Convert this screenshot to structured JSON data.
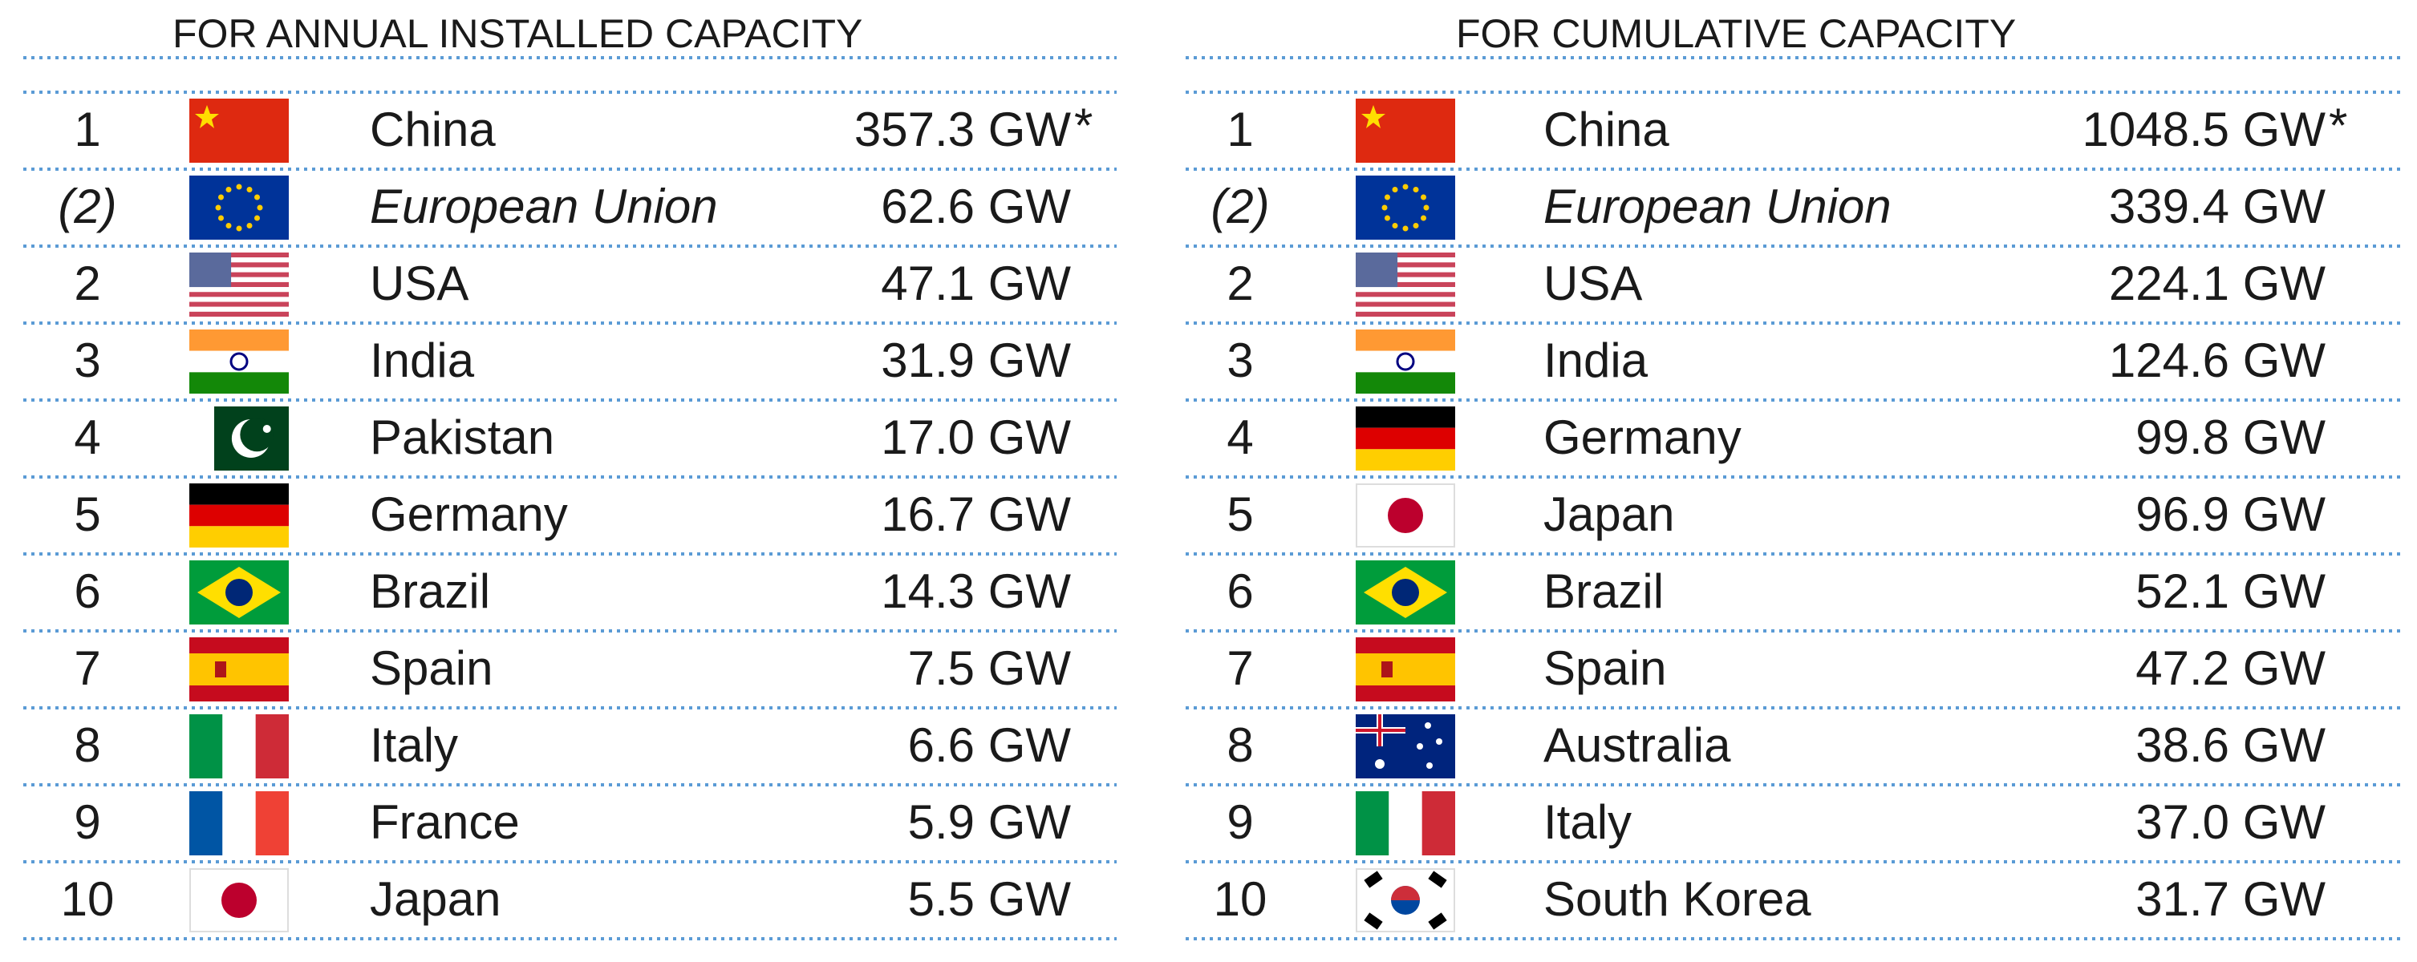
{
  "tables": [
    {
      "title": "FOR ANNUAL INSTALLED CAPACITY",
      "rows": [
        {
          "rank": "1",
          "country": "China",
          "capacity": "357.3 GW",
          "note": "*"
        },
        {
          "rank": "(2)",
          "country": "European Union",
          "capacity": "62.6 GW",
          "italic": true
        },
        {
          "rank": "2",
          "country": "USA",
          "capacity": "47.1 GW"
        },
        {
          "rank": "3",
          "country": "India",
          "capacity": "31.9 GW"
        },
        {
          "rank": "4",
          "country": "Pakistan",
          "capacity": "17.0 GW"
        },
        {
          "rank": "5",
          "country": "Germany",
          "capacity": "16.7 GW"
        },
        {
          "rank": "6",
          "country": "Brazil",
          "capacity": "14.3 GW"
        },
        {
          "rank": "7",
          "country": "Spain",
          "capacity": "7.5 GW"
        },
        {
          "rank": "8",
          "country": "Italy",
          "capacity": "6.6 GW"
        },
        {
          "rank": "9",
          "country": "France",
          "capacity": "5.9 GW"
        },
        {
          "rank": "10",
          "country": "Japan",
          "capacity": "5.5 GW"
        }
      ]
    },
    {
      "title": "FOR CUMULATIVE CAPACITY",
      "rows": [
        {
          "rank": "1",
          "country": "China",
          "capacity": "1048.5 GW",
          "note": "*"
        },
        {
          "rank": "(2)",
          "country": "European Union",
          "capacity": "339.4 GW",
          "italic": true
        },
        {
          "rank": "2",
          "country": "USA",
          "capacity": "224.1 GW"
        },
        {
          "rank": "3",
          "country": "India",
          "capacity": "124.6 GW"
        },
        {
          "rank": "4",
          "country": "Germany",
          "capacity": "99.8 GW"
        },
        {
          "rank": "5",
          "country": "Japan",
          "capacity": "96.9 GW"
        },
        {
          "rank": "6",
          "country": "Brazil",
          "capacity": "52.1 GW"
        },
        {
          "rank": "7",
          "country": "Spain",
          "capacity": "47.2 GW"
        },
        {
          "rank": "8",
          "country": "Australia",
          "capacity": "38.6 GW"
        },
        {
          "rank": "9",
          "country": "Italy",
          "capacity": "37.0 GW"
        },
        {
          "rank": "10",
          "country": "South Korea",
          "capacity": "31.7 GW"
        }
      ]
    }
  ]
}
